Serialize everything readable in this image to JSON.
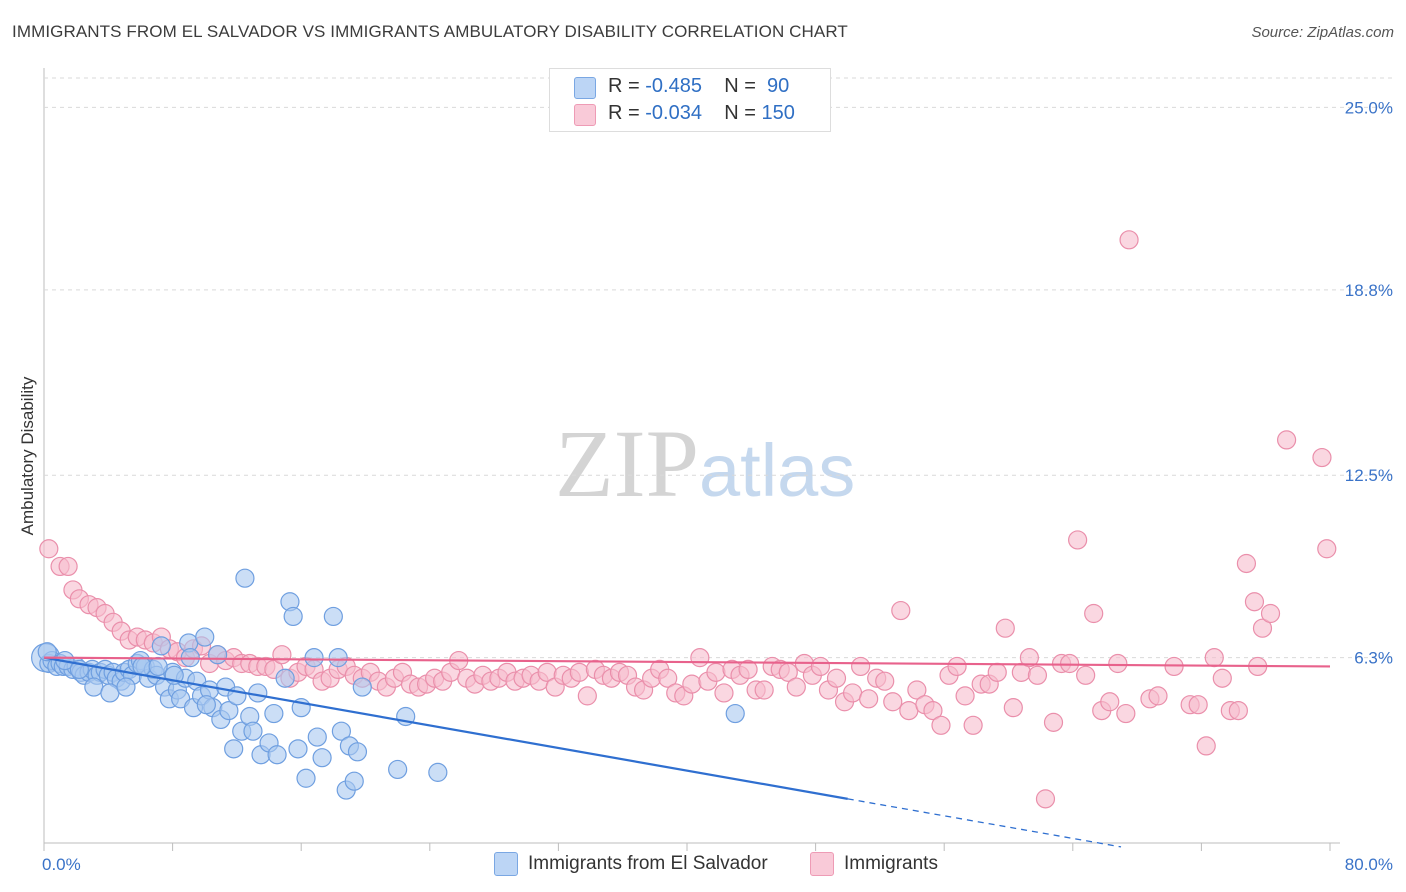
{
  "title": "IMMIGRANTS FROM EL SALVADOR VS IMMIGRANTS AMBULATORY DISABILITY CORRELATION CHART",
  "source": "Source: ZipAtlas.com",
  "watermark": {
    "part1": "ZIP",
    "part2": "atlas"
  },
  "legend": {
    "rows": [
      {
        "r_label": "R =",
        "r_value": "-0.485",
        "n_label": "N =",
        "n_value": " 90"
      },
      {
        "r_label": "R =",
        "r_value": "-0.034",
        "n_label": "N =",
        "n_value": "150"
      }
    ]
  },
  "colors": {
    "blue_fill": "#a9c8f0",
    "blue_stroke": "#6f9fe0",
    "blue_line": "#2f6fd0",
    "pink_fill": "#f6bccd",
    "pink_stroke": "#ea8fab",
    "pink_line": "#e8628c",
    "grid": "#d9d9d9",
    "tick_label": "#3a73c8"
  },
  "chart_data": {
    "type": "scatter",
    "title": "IMMIGRANTS FROM EL SALVADOR VS IMMIGRANTS AMBULATORY DISABILITY CORRELATION CHART",
    "xlabel": "",
    "ylabel": "Ambulatory Disability",
    "xlim": [
      0,
      80
    ],
    "ylim": [
      0,
      26
    ],
    "x_tick_labels": [
      "0.0%",
      "80.0%"
    ],
    "y_ticks": [
      6.3,
      12.5,
      18.8,
      25.0
    ],
    "y_tick_labels": [
      "6.3%",
      "12.5%",
      "18.8%",
      "25.0%"
    ],
    "grid": true,
    "legend_position": "top-center",
    "series": [
      {
        "name": "Immigrants from El Salvador",
        "color": "#a9c8f0",
        "trend": {
          "x0": 0,
          "y0": 6.3,
          "x1": 50,
          "y1": 1.5,
          "dash_to_x": 67
        },
        "points": [
          [
            0.1,
            6.3
          ],
          [
            0.3,
            6.1
          ],
          [
            0.5,
            6.2
          ],
          [
            0.8,
            6.0
          ],
          [
            1.0,
            6.1
          ],
          [
            1.2,
            6.0
          ],
          [
            1.5,
            6.0
          ],
          [
            1.8,
            5.9
          ],
          [
            2.0,
            6.0
          ],
          [
            2.3,
            5.8
          ],
          [
            2.5,
            5.7
          ],
          [
            2.8,
            5.8
          ],
          [
            3.0,
            5.9
          ],
          [
            3.3,
            5.7
          ],
          [
            3.5,
            5.8
          ],
          [
            3.8,
            5.9
          ],
          [
            4.0,
            5.7
          ],
          [
            4.3,
            5.8
          ],
          [
            4.5,
            5.6
          ],
          [
            4.8,
            5.5
          ],
          [
            5.0,
            5.8
          ],
          [
            5.3,
            5.9
          ],
          [
            5.5,
            5.7
          ],
          [
            5.8,
            6.1
          ],
          [
            6.0,
            6.2
          ],
          [
            6.3,
            6.0
          ],
          [
            6.5,
            5.6
          ],
          [
            6.8,
            5.9
          ],
          [
            7.0,
            5.7
          ],
          [
            7.3,
            6.7
          ],
          [
            7.5,
            5.3
          ],
          [
            7.8,
            4.9
          ],
          [
            8.0,
            5.8
          ],
          [
            8.3,
            5.2
          ],
          [
            8.5,
            4.9
          ],
          [
            8.8,
            5.6
          ],
          [
            9.0,
            6.8
          ],
          [
            9.3,
            4.6
          ],
          [
            9.5,
            5.5
          ],
          [
            9.8,
            5.0
          ],
          [
            10.0,
            7.0
          ],
          [
            10.3,
            5.2
          ],
          [
            10.5,
            4.6
          ],
          [
            10.8,
            6.4
          ],
          [
            11.0,
            4.2
          ],
          [
            11.3,
            5.3
          ],
          [
            11.5,
            4.5
          ],
          [
            11.8,
            3.2
          ],
          [
            12.0,
            5.0
          ],
          [
            12.3,
            3.8
          ],
          [
            12.5,
            9.0
          ],
          [
            12.8,
            4.3
          ],
          [
            13.0,
            3.8
          ],
          [
            13.3,
            5.1
          ],
          [
            13.5,
            3.0
          ],
          [
            14.0,
            3.4
          ],
          [
            14.3,
            4.4
          ],
          [
            14.5,
            3.0
          ],
          [
            15.0,
            5.6
          ],
          [
            15.3,
            8.2
          ],
          [
            15.5,
            7.7
          ],
          [
            15.8,
            3.2
          ],
          [
            16.0,
            4.6
          ],
          [
            16.3,
            2.2
          ],
          [
            16.8,
            6.3
          ],
          [
            17.0,
            3.6
          ],
          [
            17.3,
            2.9
          ],
          [
            18.0,
            7.7
          ],
          [
            18.3,
            6.3
          ],
          [
            18.5,
            3.8
          ],
          [
            18.8,
            1.8
          ],
          [
            19.0,
            3.3
          ],
          [
            19.3,
            2.1
          ],
          [
            19.5,
            3.1
          ],
          [
            19.8,
            5.3
          ],
          [
            22.0,
            2.5
          ],
          [
            22.5,
            4.3
          ],
          [
            24.5,
            2.4
          ],
          [
            43.0,
            4.4
          ],
          [
            0.2,
            6.5
          ],
          [
            1.3,
            6.2
          ],
          [
            2.2,
            5.9
          ],
          [
            3.1,
            5.3
          ],
          [
            4.1,
            5.1
          ],
          [
            5.1,
            5.3
          ],
          [
            6.1,
            6.0
          ],
          [
            7.1,
            6.0
          ],
          [
            8.1,
            5.7
          ],
          [
            9.1,
            6.3
          ],
          [
            10.1,
            4.7
          ]
        ]
      },
      {
        "name": "Immigrants",
        "color": "#f6bccd",
        "trend": {
          "x0": 0,
          "y0": 6.3,
          "x1": 80,
          "y1": 6.0
        },
        "points": [
          [
            0.3,
            10.0
          ],
          [
            1.0,
            9.4
          ],
          [
            1.5,
            9.4
          ],
          [
            1.8,
            8.6
          ],
          [
            2.2,
            8.3
          ],
          [
            2.8,
            8.1
          ],
          [
            3.3,
            8.0
          ],
          [
            3.8,
            7.8
          ],
          [
            4.3,
            7.5
          ],
          [
            4.8,
            7.2
          ],
          [
            5.3,
            6.9
          ],
          [
            5.8,
            7.0
          ],
          [
            6.3,
            6.9
          ],
          [
            6.8,
            6.8
          ],
          [
            7.3,
            7.0
          ],
          [
            7.8,
            6.6
          ],
          [
            8.3,
            6.5
          ],
          [
            8.8,
            6.3
          ],
          [
            9.3,
            6.6
          ],
          [
            9.8,
            6.7
          ],
          [
            10.3,
            6.1
          ],
          [
            10.8,
            6.4
          ],
          [
            11.3,
            6.2
          ],
          [
            11.8,
            6.3
          ],
          [
            12.3,
            6.1
          ],
          [
            12.8,
            6.1
          ],
          [
            13.3,
            6.0
          ],
          [
            13.8,
            6.0
          ],
          [
            14.3,
            5.9
          ],
          [
            14.8,
            6.4
          ],
          [
            15.3,
            5.6
          ],
          [
            15.8,
            5.8
          ],
          [
            16.3,
            6.0
          ],
          [
            16.8,
            5.9
          ],
          [
            17.3,
            5.5
          ],
          [
            17.8,
            5.6
          ],
          [
            18.3,
            5.9
          ],
          [
            18.8,
            6.0
          ],
          [
            19.3,
            5.7
          ],
          [
            19.8,
            5.6
          ],
          [
            20.3,
            5.8
          ],
          [
            20.8,
            5.5
          ],
          [
            21.3,
            5.3
          ],
          [
            21.8,
            5.6
          ],
          [
            22.3,
            5.8
          ],
          [
            22.8,
            5.4
          ],
          [
            23.3,
            5.3
          ],
          [
            23.8,
            5.4
          ],
          [
            24.3,
            5.6
          ],
          [
            24.8,
            5.5
          ],
          [
            25.3,
            5.8
          ],
          [
            25.8,
            6.2
          ],
          [
            26.3,
            5.6
          ],
          [
            26.8,
            5.4
          ],
          [
            27.3,
            5.7
          ],
          [
            27.8,
            5.5
          ],
          [
            28.3,
            5.6
          ],
          [
            28.8,
            5.8
          ],
          [
            29.3,
            5.5
          ],
          [
            29.8,
            5.6
          ],
          [
            30.3,
            5.7
          ],
          [
            30.8,
            5.5
          ],
          [
            31.3,
            5.8
          ],
          [
            31.8,
            5.3
          ],
          [
            32.3,
            5.7
          ],
          [
            32.8,
            5.6
          ],
          [
            33.3,
            5.8
          ],
          [
            33.8,
            5.0
          ],
          [
            34.3,
            5.9
          ],
          [
            34.8,
            5.7
          ],
          [
            35.3,
            5.6
          ],
          [
            35.8,
            5.8
          ],
          [
            36.3,
            5.7
          ],
          [
            36.8,
            5.3
          ],
          [
            37.3,
            5.2
          ],
          [
            37.8,
            5.6
          ],
          [
            38.3,
            5.9
          ],
          [
            38.8,
            5.6
          ],
          [
            39.3,
            5.1
          ],
          [
            39.8,
            5.0
          ],
          [
            40.3,
            5.4
          ],
          [
            40.8,
            6.3
          ],
          [
            41.3,
            5.5
          ],
          [
            41.8,
            5.8
          ],
          [
            42.3,
            5.1
          ],
          [
            42.8,
            5.9
          ],
          [
            43.3,
            5.7
          ],
          [
            43.8,
            5.9
          ],
          [
            44.3,
            5.2
          ],
          [
            44.8,
            5.2
          ],
          [
            45.3,
            6.0
          ],
          [
            45.8,
            5.9
          ],
          [
            46.3,
            5.8
          ],
          [
            46.8,
            5.3
          ],
          [
            47.3,
            6.1
          ],
          [
            47.8,
            5.7
          ],
          [
            48.3,
            6.0
          ],
          [
            48.8,
            5.2
          ],
          [
            49.3,
            5.6
          ],
          [
            49.8,
            4.8
          ],
          [
            50.3,
            5.1
          ],
          [
            50.8,
            6.0
          ],
          [
            51.3,
            4.9
          ],
          [
            51.8,
            5.6
          ],
          [
            52.3,
            5.5
          ],
          [
            52.8,
            4.8
          ],
          [
            53.3,
            7.9
          ],
          [
            53.8,
            4.5
          ],
          [
            54.3,
            5.2
          ],
          [
            54.8,
            4.7
          ],
          [
            55.3,
            4.5
          ],
          [
            55.8,
            4.0
          ],
          [
            56.3,
            5.7
          ],
          [
            56.8,
            6.0
          ],
          [
            57.3,
            5.0
          ],
          [
            57.8,
            4.0
          ],
          [
            58.3,
            5.4
          ],
          [
            58.8,
            5.4
          ],
          [
            59.3,
            5.8
          ],
          [
            59.8,
            7.3
          ],
          [
            60.3,
            4.6
          ],
          [
            60.8,
            5.8
          ],
          [
            61.3,
            6.3
          ],
          [
            61.8,
            5.7
          ],
          [
            62.3,
            1.5
          ],
          [
            62.8,
            4.1
          ],
          [
            63.3,
            6.1
          ],
          [
            63.8,
            6.1
          ],
          [
            64.3,
            10.3
          ],
          [
            64.8,
            5.7
          ],
          [
            65.3,
            7.8
          ],
          [
            65.8,
            4.5
          ],
          [
            66.3,
            4.8
          ],
          [
            66.8,
            6.1
          ],
          [
            67.3,
            4.4
          ],
          [
            68.8,
            4.9
          ],
          [
            69.3,
            5.0
          ],
          [
            70.3,
            6.0
          ],
          [
            71.3,
            4.7
          ],
          [
            71.8,
            4.7
          ],
          [
            72.3,
            3.3
          ],
          [
            72.8,
            6.3
          ],
          [
            73.3,
            5.6
          ],
          [
            73.8,
            4.5
          ],
          [
            74.3,
            4.5
          ],
          [
            74.8,
            9.5
          ],
          [
            75.3,
            8.2
          ],
          [
            75.8,
            7.3
          ],
          [
            76.3,
            7.8
          ],
          [
            75.5,
            6.0
          ],
          [
            77.3,
            13.7
          ],
          [
            79.5,
            13.1
          ],
          [
            79.8,
            10.0
          ],
          [
            67.5,
            20.5
          ]
        ]
      }
    ]
  },
  "bottom_legend": [
    {
      "label": "Immigrants from El Salvador"
    },
    {
      "label": "Immigrants"
    }
  ]
}
